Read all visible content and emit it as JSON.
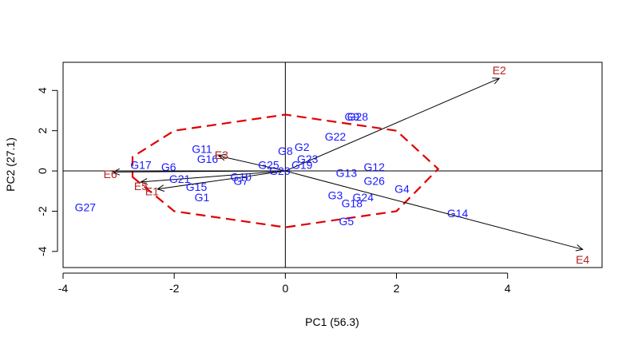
{
  "chart_data": {
    "type": "scatter",
    "xlabel": "PC1 (56.3)",
    "ylabel": "PC2 (27.1)",
    "xlim": [
      -4.0,
      5.7
    ],
    "ylim": [
      -4.8,
      5.4
    ],
    "xticks": [
      -4,
      -2,
      0,
      2,
      4
    ],
    "yticks": [
      -4,
      -2,
      0,
      2,
      4
    ],
    "xtick_labels": [
      "-4",
      "-2",
      "0",
      "2",
      "4"
    ],
    "ytick_labels": [
      "-4",
      "-2",
      "0",
      "2",
      "4"
    ],
    "colors": {
      "genotype": "#1a1aff",
      "environment": "#b22222",
      "hull": "#e00000",
      "vector": "#000000"
    },
    "genotypes": [
      {
        "label": "G27",
        "x": -3.6,
        "y": -1.8
      },
      {
        "label": "G17",
        "x": -2.6,
        "y": 0.3
      },
      {
        "label": "G6",
        "x": -2.1,
        "y": 0.2
      },
      {
        "label": "G21",
        "x": -1.9,
        "y": -0.4
      },
      {
        "label": "G15",
        "x": -1.6,
        "y": -0.8
      },
      {
        "label": "G1",
        "x": -1.5,
        "y": -1.3
      },
      {
        "label": "G11",
        "x": -1.5,
        "y": 1.1
      },
      {
        "label": "G16",
        "x": -1.4,
        "y": 0.6
      },
      {
        "label": "G10",
        "x": -0.8,
        "y": -0.3
      },
      {
        "label": "G7",
        "x": -0.8,
        "y": -0.5
      },
      {
        "label": "G25",
        "x": -0.3,
        "y": 0.3
      },
      {
        "label": "G20",
        "x": -0.1,
        "y": 0.0
      },
      {
        "label": "G8",
        "x": 0.0,
        "y": 1.0
      },
      {
        "label": "G2",
        "x": 0.3,
        "y": 1.2
      },
      {
        "label": "G23",
        "x": 0.4,
        "y": 0.6
      },
      {
        "label": "G19",
        "x": 0.3,
        "y": 0.3
      },
      {
        "label": "G22",
        "x": 0.9,
        "y": 1.7
      },
      {
        "label": "G9",
        "x": 1.2,
        "y": 2.7
      },
      {
        "label": "G28",
        "x": 1.3,
        "y": 2.7
      },
      {
        "label": "G13",
        "x": 1.1,
        "y": -0.1
      },
      {
        "label": "G12",
        "x": 1.6,
        "y": 0.2
      },
      {
        "label": "G26",
        "x": 1.6,
        "y": -0.5
      },
      {
        "label": "G3",
        "x": 0.9,
        "y": -1.2
      },
      {
        "label": "G24",
        "x": 1.4,
        "y": -1.3
      },
      {
        "label": "G18",
        "x": 1.2,
        "y": -1.6
      },
      {
        "label": "G5",
        "x": 1.1,
        "y": -2.5
      },
      {
        "label": "G4",
        "x": 2.1,
        "y": -0.9
      },
      {
        "label": "G14",
        "x": 3.1,
        "y": -2.1
      }
    ],
    "environments": [
      {
        "label": "E2",
        "x": 3.85,
        "y": 4.6,
        "tx": 3.85,
        "ty": 5.0
      },
      {
        "label": "E4",
        "x": 5.35,
        "y": -3.9,
        "tx": 5.35,
        "ty": -4.4
      },
      {
        "label": "E6",
        "x": -3.1,
        "y": -0.05,
        "tx": -3.15,
        "ty": -0.15
      },
      {
        "label": "E5",
        "x": -2.6,
        "y": -0.55,
        "tx": -2.6,
        "ty": -0.75
      },
      {
        "label": "E1",
        "x": -2.3,
        "y": -0.9,
        "tx": -2.4,
        "ty": -1.0
      },
      {
        "label": "E3",
        "x": -1.2,
        "y": 0.75,
        "tx": -1.15,
        "ty": 0.8
      }
    ],
    "hull": [
      [
        -2.75,
        -0.3
      ],
      [
        -2.0,
        -2.0
      ],
      [
        0.0,
        -2.8
      ],
      [
        2.0,
        -2.0
      ],
      [
        2.75,
        0.1
      ],
      [
        2.0,
        2.0
      ],
      [
        0.0,
        2.8
      ],
      [
        -2.0,
        2.0
      ],
      [
        -2.75,
        0.7
      ]
    ]
  }
}
